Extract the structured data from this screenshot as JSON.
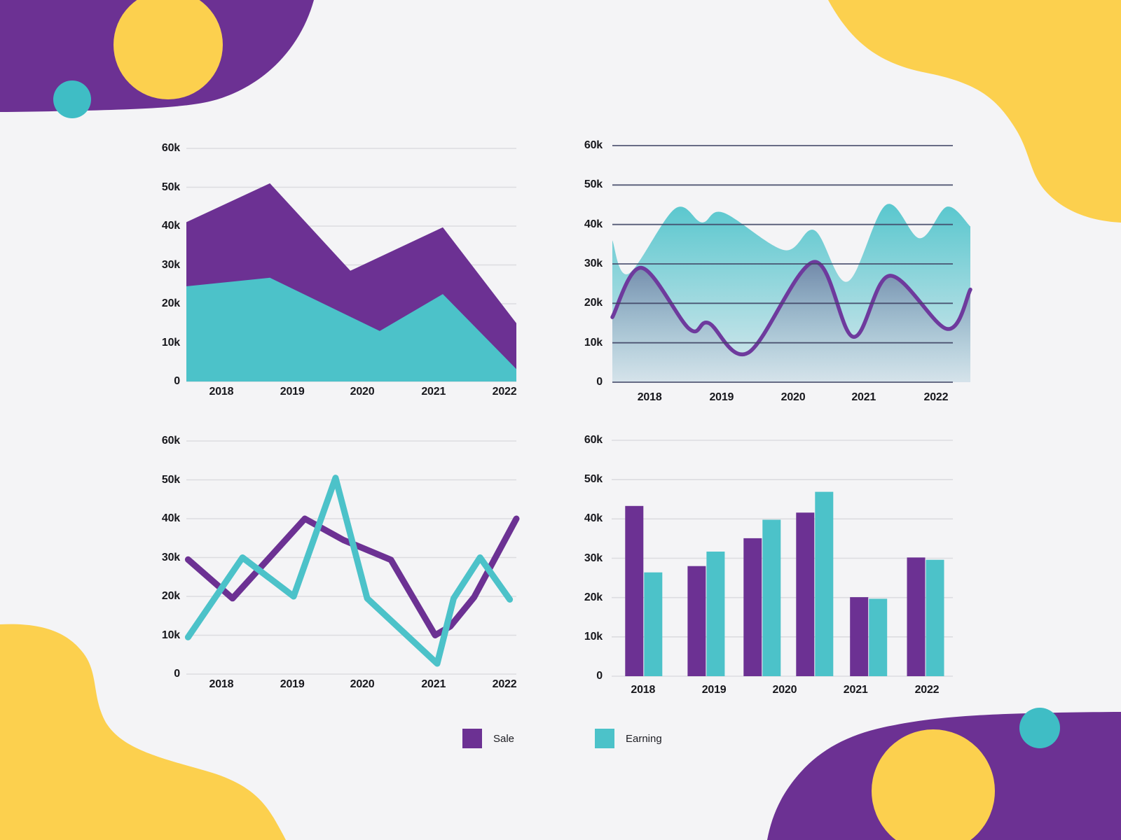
{
  "background_color": "#f4f4f6",
  "palette": {
    "purple": "#6c3193",
    "teal": "#4cc2c9",
    "yellow": "#fcd04e",
    "teal_circle": "#3fbdc5",
    "grid_light": "#dcdce0",
    "grid_dark": "#3f4464",
    "tick_text": "#17171c"
  },
  "decor": {
    "top_left": {
      "blob": "purple",
      "circles": [
        "yellow",
        "teal"
      ]
    },
    "top_right": {
      "blob": "yellow"
    },
    "bottom_left": {
      "blob": "yellow"
    },
    "bottom_right": {
      "blob": "purple",
      "circles": [
        "yellow",
        "teal"
      ]
    }
  },
  "legend": {
    "items": [
      {
        "label": "Sale",
        "color": "#6c3193"
      },
      {
        "label": "Earning",
        "color": "#4cc2c9"
      }
    ]
  },
  "chart_data": [
    {
      "id": "stacked-area",
      "type": "area",
      "variant": "stacked",
      "title": "",
      "categories": [
        "2018",
        "2019",
        "2020",
        "2021",
        "2022"
      ],
      "yticks": [
        "60k",
        "50k",
        "40k",
        "30k",
        "20k",
        "10k",
        "0"
      ],
      "ylim": [
        0,
        60000
      ],
      "unit": "k",
      "grid": "light",
      "series": [
        {
          "name": "Sale",
          "color": "#6c3193",
          "note": "stacked total (top boundary)",
          "x_frac": [
            0,
            0.253,
            0.497,
            0.777,
            1
          ],
          "values_k": [
            41,
            51,
            28.5,
            39.7,
            15
          ]
        },
        {
          "name": "Earning",
          "color": "#4cc2c9",
          "note": "lower band boundary",
          "x_frac": [
            0,
            0.253,
            0.586,
            0.777,
            1
          ],
          "values_k": [
            24.5,
            26.7,
            13,
            22.5,
            3.2
          ]
        }
      ]
    },
    {
      "id": "smooth-area",
      "type": "area",
      "variant": "smooth-overlay",
      "title": "",
      "categories": [
        "2018",
        "2019",
        "2020",
        "2021",
        "2022"
      ],
      "yticks": [
        "60k",
        "50k",
        "40k",
        "30k",
        "20k",
        "10k",
        "0"
      ],
      "ylim": [
        0,
        60000
      ],
      "unit": "k",
      "grid": "dark",
      "series": [
        {
          "name": "Earning",
          "area_top": "#59c7ce",
          "area_bottom": "#dbe9ee",
          "x_frac": [
            0,
            0.045,
            0.175,
            0.25,
            0.31,
            0.48,
            0.565,
            0.657,
            0.765,
            0.859,
            0.935,
            1
          ],
          "values_k": [
            36,
            27.5,
            44,
            40.5,
            43,
            33.5,
            38.5,
            25.5,
            45,
            36.5,
            44.5,
            39.5
          ]
        },
        {
          "name": "Sale",
          "color": "#6e3a9d",
          "line_width": 5.5,
          "area_top": "rgba(100,75,130,0.55)",
          "area_bottom": "rgba(170,180,205,0.12)",
          "x_frac": [
            0,
            0.082,
            0.215,
            0.269,
            0.38,
            0.563,
            0.673,
            0.775,
            0.935,
            1
          ],
          "values_k": [
            16.5,
            29,
            13.5,
            15,
            7.5,
            30.5,
            11.5,
            27,
            13.5,
            23.5
          ]
        }
      ]
    },
    {
      "id": "line-chart",
      "type": "line",
      "title": "",
      "categories": [
        "2018",
        "2019",
        "2020",
        "2021",
        "2022"
      ],
      "yticks": [
        "60k",
        "50k",
        "40k",
        "30k",
        "20k",
        "10k",
        "0"
      ],
      "ylim": [
        0,
        60000
      ],
      "unit": "k",
      "grid": "light",
      "series": [
        {
          "name": "Sale",
          "color": "#6c3193",
          "x_frac": [
            0.005,
            0.14,
            0.359,
            0.476,
            0.62,
            0.754,
            0.8,
            0.872,
            1
          ],
          "values_k": [
            29.5,
            19.5,
            40,
            34.5,
            29.4,
            10,
            12.3,
            19.8,
            40
          ]
        },
        {
          "name": "Earning",
          "color": "#4cc2c9",
          "x_frac": [
            0.005,
            0.17,
            0.325,
            0.452,
            0.548,
            0.76,
            0.81,
            0.89,
            0.98
          ],
          "values_k": [
            9.5,
            30,
            20,
            50.5,
            19.5,
            2.7,
            19.5,
            30,
            19.2
          ]
        }
      ]
    },
    {
      "id": "bar-chart",
      "type": "bar",
      "title": "",
      "categories": [
        "2018",
        "2019",
        "2020",
        "2021",
        "2022"
      ],
      "yticks": [
        "60k",
        "50k",
        "40k",
        "30k",
        "20k",
        "10k",
        "0"
      ],
      "ylim": [
        0,
        60000
      ],
      "unit": "k",
      "grid": "light",
      "group_count": 6,
      "series": [
        {
          "name": "Sale",
          "color": "#6c3193",
          "values_k": [
            43.3,
            28,
            35.1,
            41.6,
            20.1,
            30.2
          ]
        },
        {
          "name": "Earning",
          "color": "#4cc2c9",
          "values_k": [
            26.4,
            31.7,
            39.8,
            46.9,
            19.7,
            29.6
          ]
        }
      ]
    }
  ]
}
